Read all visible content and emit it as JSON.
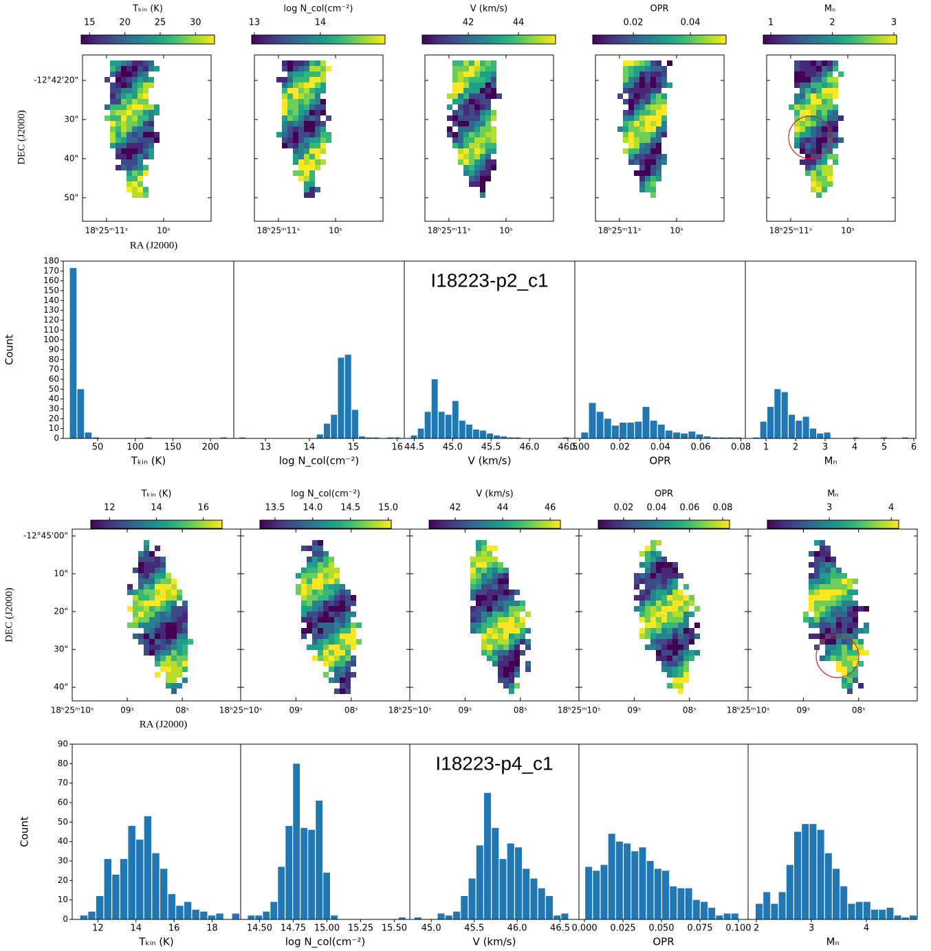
{
  "chart_data": [
    {
      "type": "map",
      "colormap": "viridis",
      "clabel": "Tₖᵢₙ (K)",
      "clim": [
        13.8,
        32.7
      ],
      "cticks": [
        15,
        20,
        25,
        30
      ],
      "xlim": [
        11.42,
        9.17
      ],
      "xticks": [
        {
          "value": 11,
          "label": "18ʰ25ᵐ11ˢ"
        },
        {
          "value": 10,
          "label": "10ˢ"
        }
      ],
      "ylim": [
        56,
        13.5
      ],
      "yticks": [
        {
          "value": 20,
          "label": "-12°42'20\""
        },
        {
          "value": 30,
          "label": "30\""
        },
        {
          "value": 40,
          "label": "40\""
        },
        {
          "value": 50,
          "label": "50\""
        }
      ],
      "xlabel": "RA (J2000)",
      "ylabel": "DEC (J2000)"
    },
    {
      "type": "map",
      "colormap": "viridis",
      "clabel": "log N_col(cm⁻²)",
      "clim": [
        12.96,
        14.98
      ],
      "cticks": [
        13,
        14
      ],
      "xlim": [
        11.42,
        9.17
      ],
      "xticks": [
        {
          "value": 11,
          "label": "18ʰ25ᵐ11ˢ"
        },
        {
          "value": 10,
          "label": "10ˢ"
        }
      ],
      "ylim": [
        56,
        13.5
      ]
    },
    {
      "type": "map",
      "colormap": "viridis",
      "clabel": "V (km/s)",
      "clim": [
        40.16,
        45.48
      ],
      "cticks": [
        42,
        44
      ],
      "xlim": [
        11.42,
        9.17
      ],
      "xticks": [
        {
          "value": 11,
          "label": "18ʰ25ᵐ11ˢ"
        },
        {
          "value": 10,
          "label": "10ˢ"
        }
      ],
      "ylim": [
        56,
        13.5
      ]
    },
    {
      "type": "map",
      "colormap": "viridis",
      "clabel": "OPR",
      "clim": [
        0.0058,
        0.0525
      ],
      "cticks": [
        0.02,
        0.04
      ],
      "xlim": [
        11.42,
        9.17
      ],
      "xticks": [
        {
          "value": 11,
          "label": "18ʰ25ᵐ11ˢ"
        },
        {
          "value": 10,
          "label": "10ˢ"
        }
      ],
      "ylim": [
        56,
        13.5
      ]
    },
    {
      "type": "map",
      "colormap": "viridis",
      "clabel": "Mₙ",
      "clim": [
        0.877,
        3.045
      ],
      "cticks": [
        1,
        2,
        3
      ],
      "xlim": [
        11.42,
        9.17
      ],
      "xticks": [
        {
          "value": 11,
          "label": "18ʰ25ᵐ11ˢ"
        },
        {
          "value": 10,
          "label": "10ˢ"
        }
      ],
      "ylim": [
        56,
        13.5
      ]
    },
    {
      "type": "histogram",
      "color": "#1f77b4",
      "xlabel": "Tₖᵢₙ (K)",
      "ylabel": "Count",
      "bins": [
        12.5,
        22.5,
        32.5,
        42.5,
        52.5,
        62.5,
        72.5,
        82.5,
        92.5,
        102.5,
        112.5,
        122.5,
        132.5,
        142.5,
        152.5,
        162.5,
        172.5,
        182.5,
        192.5,
        202.5,
        212.5,
        222.5
      ],
      "values": [
        173,
        50,
        6,
        1,
        0,
        0,
        0,
        0,
        0,
        0,
        1,
        0,
        0,
        0,
        0,
        0,
        0,
        0,
        0,
        0,
        1
      ],
      "xlim": [
        4.3,
        231
      ],
      "xticks": [
        50,
        100,
        150,
        200
      ],
      "ylim": [
        0,
        180
      ],
      "yticks": [
        0,
        10,
        20,
        30,
        40,
        50,
        60,
        70,
        80,
        90,
        100,
        110,
        120,
        130,
        140,
        150,
        160,
        170,
        180
      ]
    },
    {
      "type": "histogram",
      "color": "#1f77b4",
      "xlabel": "log N_col(cm⁻²)",
      "bins": [
        12.4,
        12.56,
        12.72,
        12.88,
        13.04,
        13.2,
        13.36,
        13.52,
        13.68,
        13.84,
        14.0,
        14.16,
        14.32,
        14.48,
        14.64,
        14.8,
        14.96,
        15.12,
        15.28,
        15.44,
        15.6,
        15.76,
        15.92,
        16.08
      ],
      "values": [
        1,
        0,
        0,
        0,
        0,
        0,
        0,
        0,
        0,
        0,
        0,
        4,
        15,
        24,
        82,
        85,
        29,
        2,
        1,
        1,
        0,
        1,
        1
      ],
      "xlim": [
        12.28,
        16.16
      ],
      "xticks": [
        13,
        14,
        15,
        16
      ],
      "ylim": [
        0,
        180
      ]
    },
    {
      "type": "histogram",
      "color": "#1f77b4",
      "title": "I18223-p2_c1",
      "xlabel": "V (km/s)",
      "bins": [
        44.45,
        44.54,
        44.63,
        44.72,
        44.81,
        44.9,
        44.99,
        45.08,
        45.17,
        45.26,
        45.35,
        45.44,
        45.53,
        45.62,
        45.71,
        45.8,
        45.89,
        45.98,
        46.07,
        46.16,
        46.25,
        46.34,
        46.43,
        46.52
      ],
      "values": [
        3,
        10,
        27,
        60,
        27,
        24,
        38,
        18,
        14,
        9,
        8,
        5,
        3,
        2,
        1,
        1,
        0,
        0,
        0,
        0,
        0,
        0,
        1
      ],
      "xlim": [
        44.37,
        46.59
      ],
      "xticks": [
        44.5,
        {
          "value": 45,
          "label": "45.0"
        },
        45.5,
        {
          "value": 46,
          "label": "46.0"
        },
        46.5
      ],
      "ylim": [
        0,
        180
      ]
    },
    {
      "type": "histogram",
      "color": "#1f77b4",
      "xlabel": "OPR",
      "bins": [
        0.0006,
        0.0044,
        0.0082,
        0.012,
        0.0158,
        0.0196,
        0.0234,
        0.0272,
        0.031,
        0.0348,
        0.0386,
        0.0424,
        0.0462,
        0.05,
        0.0538,
        0.0576,
        0.0614,
        0.0652,
        0.069,
        0.0728,
        0.0766,
        0.0804
      ],
      "values": [
        6,
        36,
        27,
        20,
        13,
        16,
        16,
        17,
        32,
        18,
        14,
        8,
        6,
        5,
        7,
        4,
        2,
        1,
        1,
        1,
        1
      ],
      "xlim": [
        -0.0024,
        0.0822
      ],
      "xticks": [
        {
          "value": 0,
          "label": "0.00"
        },
        0.02,
        0.04,
        0.06,
        0.08
      ],
      "ylim": [
        0,
        180
      ]
    },
    {
      "type": "histogram",
      "color": "#1f77b4",
      "xlabel": "Mₙ",
      "bins": [
        0.55,
        0.79,
        1.03,
        1.27,
        1.51,
        1.75,
        1.99,
        2.23,
        2.47,
        2.71,
        2.95,
        3.19,
        3.43,
        3.67,
        3.91,
        4.15,
        4.39,
        4.63,
        4.87,
        5.11,
        5.35,
        5.59,
        5.83,
        6.07
      ],
      "values": [
        1,
        17,
        32,
        50,
        47,
        24,
        18,
        22,
        10,
        5,
        6,
        0,
        0,
        0,
        1,
        0,
        0,
        0,
        1,
        0,
        0,
        1,
        0
      ],
      "xlim": [
        0.3,
        6.07
      ],
      "xticks": [
        1,
        2,
        3,
        4,
        5,
        6
      ],
      "ylim": [
        0,
        180
      ]
    },
    {
      "type": "map",
      "colormap": "viridis",
      "clabel": "Tₖᵢₙ (K)",
      "clim": [
        11.2,
        16.8
      ],
      "cticks": [
        12,
        14,
        16
      ],
      "xlim": [
        10.0,
        6.94
      ],
      "xticks": [
        {
          "value": 10,
          "label": "18ʰ25ᵐ10ˢ"
        },
        {
          "value": 9,
          "label": "09ˢ"
        },
        {
          "value": 8,
          "label": "08ˢ"
        }
      ],
      "ylim": [
        43.6,
        -1.8
      ],
      "yticks": [
        {
          "value": 0,
          "label": "-12°45'00\""
        },
        {
          "value": 10,
          "label": "10\""
        },
        {
          "value": 20,
          "label": "20\""
        },
        {
          "value": 30,
          "label": "30\""
        },
        {
          "value": 40,
          "label": "40\""
        }
      ],
      "xlabel": "RA (J2000)",
      "ylabel": "DEC (J2000)"
    },
    {
      "type": "map",
      "colormap": "viridis",
      "clabel": "log N_col(cm⁻²)",
      "clim": [
        13.3,
        15.04
      ],
      "cticks": [
        13.5,
        {
          "value": 14,
          "label": "14.0"
        },
        14.5,
        {
          "value": 15,
          "label": "15.0"
        }
      ],
      "xlim": [
        10.0,
        6.94
      ],
      "xticks": [
        {
          "value": 10,
          "label": "18ʰ25ᵐ10ˢ"
        },
        {
          "value": 9,
          "label": "09ˢ"
        },
        {
          "value": 8,
          "label": "08ˢ"
        }
      ],
      "ylim": [
        43.6,
        -1.8
      ]
    },
    {
      "type": "map",
      "colormap": "viridis",
      "clabel": "V (km/s)",
      "clim": [
        40.9,
        46.43
      ],
      "cticks": [
        42,
        44,
        46
      ],
      "xlim": [
        10.0,
        6.94
      ],
      "xticks": [
        {
          "value": 10,
          "label": "18ʰ25ᵐ10ˢ"
        },
        {
          "value": 9,
          "label": "09ˢ"
        },
        {
          "value": 8,
          "label": "08ˢ"
        }
      ],
      "ylim": [
        43.6,
        -1.8
      ]
    },
    {
      "type": "map",
      "colormap": "viridis",
      "clabel": "OPR",
      "clim": [
        0.0046,
        0.0842
      ],
      "cticks": [
        0.02,
        0.04,
        0.06,
        0.08
      ],
      "xlim": [
        10.0,
        6.94
      ],
      "xticks": [
        {
          "value": 10,
          "label": "18ʰ25ᵐ10ˢ"
        },
        {
          "value": 9,
          "label": "09ˢ"
        },
        {
          "value": 8,
          "label": "08ˢ"
        }
      ],
      "ylim": [
        43.6,
        -1.8
      ]
    },
    {
      "type": "map",
      "colormap": "viridis",
      "clabel": "Mₙ",
      "clim": [
        2.0,
        4.12
      ],
      "cticks": [
        3,
        4
      ],
      "xlim": [
        10.0,
        6.94
      ],
      "xticks": [
        {
          "value": 10,
          "label": "18ʰ25ᵐ10ˢ"
        },
        {
          "value": 9,
          "label": "09ˢ"
        },
        {
          "value": 8,
          "label": "08ˢ"
        }
      ],
      "ylim": [
        43.6,
        -1.8
      ]
    },
    {
      "type": "histogram",
      "color": "#1f77b4",
      "xlabel": "Tₖᵢₙ (K)",
      "ylabel": "Count",
      "bins": [
        11.05,
        11.47,
        11.89,
        12.31,
        12.73,
        13.15,
        13.57,
        13.99,
        14.41,
        14.83,
        15.25,
        15.67,
        16.09,
        16.51,
        16.93,
        17.35,
        17.77,
        18.19,
        18.61,
        19.03,
        19.45
      ],
      "values": [
        2,
        4,
        12,
        31,
        23,
        31,
        48,
        41,
        53,
        34,
        26,
        13,
        7,
        9,
        5,
        4,
        2,
        3,
        0,
        3
      ],
      "xlim": [
        10.65,
        19.5
      ],
      "xticks": [
        12,
        14,
        16,
        18
      ],
      "ylim": [
        0,
        90
      ],
      "yticks": [
        0,
        10,
        20,
        30,
        40,
        50,
        60,
        70,
        80,
        90
      ]
    },
    {
      "type": "histogram",
      "color": "#1f77b4",
      "xlabel": "log N_col(cm⁻²)",
      "bins": [
        14.41,
        14.466,
        14.522,
        14.578,
        14.634,
        14.69,
        14.746,
        14.802,
        14.858,
        14.914,
        14.97,
        15.026,
        15.082,
        15.138,
        15.194,
        15.25,
        15.306,
        15.362,
        15.418,
        15.474,
        15.53,
        15.586,
        15.642
      ],
      "values": [
        2,
        2,
        4,
        9,
        27,
        48,
        80,
        47,
        46,
        61,
        24,
        2,
        0,
        0,
        0,
        0,
        0,
        0,
        0,
        0,
        1,
        0
      ],
      "xlim": [
        14.36,
        15.615
      ],
      "xticks": [
        {
          "value": 14.5,
          "label": "14.50"
        },
        14.75,
        {
          "value": 15,
          "label": "15.00"
        },
        15.25,
        {
          "value": 15.5,
          "label": "15.50"
        }
      ],
      "ylim": [
        0,
        90
      ]
    },
    {
      "type": "histogram",
      "color": "#1f77b4",
      "title": "I18223-p4_c1",
      "xlabel": "V (km/s)",
      "bins": [
        44.8,
        44.89,
        44.98,
        45.07,
        45.16,
        45.25,
        45.34,
        45.43,
        45.52,
        45.61,
        45.7,
        45.79,
        45.88,
        45.97,
        46.06,
        46.15,
        46.24,
        46.33,
        46.42,
        46.51,
        46.6
      ],
      "values": [
        1,
        0,
        0,
        3,
        2,
        4,
        12,
        21,
        38,
        65,
        47,
        31,
        39,
        37,
        26,
        21,
        16,
        12,
        2,
        3
      ],
      "xlim": [
        44.75,
        46.72
      ],
      "xticks": [
        {
          "value": 45,
          "label": "45.0"
        },
        45.5,
        {
          "value": 46,
          "label": "46.0"
        },
        46.5
      ],
      "ylim": [
        0,
        90
      ]
    },
    {
      "type": "histogram",
      "color": "#1f77b4",
      "xlabel": "OPR",
      "bins": [
        0.0002,
        0.0052,
        0.0102,
        0.0152,
        0.0202,
        0.0252,
        0.0302,
        0.0352,
        0.0402,
        0.0452,
        0.0502,
        0.0552,
        0.0602,
        0.0652,
        0.0702,
        0.0752,
        0.0802,
        0.0852,
        0.0902,
        0.0952,
        0.1002
      ],
      "values": [
        27,
        25,
        28,
        44,
        40,
        39,
        35,
        37,
        30,
        26,
        25,
        17,
        16,
        16,
        10,
        9,
        6,
        2,
        3,
        3
      ],
      "xlim": [
        -0.0036,
        0.1063
      ],
      "xticks": [
        {
          "value": 0,
          "label": "0.000"
        },
        0.025,
        {
          "value": 0.05,
          "label": "0.050"
        },
        0.075,
        {
          "value": 0.1,
          "label": "0.100"
        }
      ],
      "ylim": [
        0,
        90
      ]
    },
    {
      "type": "histogram",
      "color": "#1f77b4",
      "xlabel": "Mₙ",
      "bins": [
        1.98,
        2.12,
        2.26,
        2.4,
        2.54,
        2.68,
        2.82,
        2.96,
        3.1,
        3.24,
        3.38,
        3.52,
        3.66,
        3.8,
        3.94,
        4.08,
        4.22,
        4.36,
        4.5,
        4.64,
        4.78,
        4.92
      ],
      "values": [
        8,
        14,
        8,
        14,
        28,
        45,
        49,
        49,
        46,
        34,
        26,
        17,
        8,
        9,
        9,
        5,
        5,
        6,
        2,
        1,
        2
      ],
      "xlim": [
        1.85,
        4.925
      ],
      "xticks": [
        2,
        3,
        4
      ],
      "ylim": [
        0,
        90
      ]
    }
  ]
}
